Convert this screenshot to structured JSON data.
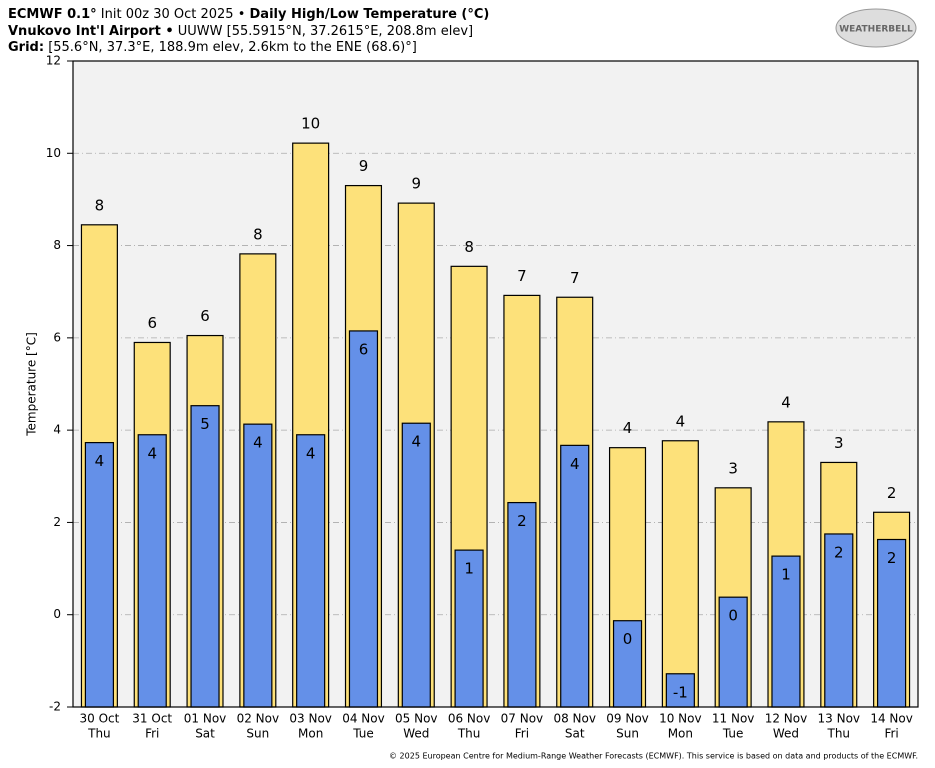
{
  "chart_data": {
    "type": "bar",
    "title": [
      "ECMWF 0.1°",
      "Init 00z 30 Oct 2025 •",
      "Daily High/Low Temperature (°C)"
    ],
    "subtitle": [
      "Vnukovo Int'l Airport •",
      "UUWW [55.5915°N, 37.2615°E, 208.8m elev]"
    ],
    "grid_info": [
      "Grid:",
      "[55.6°N, 37.3°E, 188.9m elev, 2.6km to the ENE (68.6)°]"
    ],
    "logo": "WEATHERBELL",
    "credit": "© 2025 European Centre for Medium-Range Weather Forecasts (ECMWF). This service is based on data and products of the ECMWF.",
    "ylabel": "Temperature [°C]",
    "categories": [
      "30 Oct",
      "31 Oct",
      "01 Nov",
      "02 Nov",
      "03 Nov",
      "04 Nov",
      "05 Nov",
      "06 Nov",
      "07 Nov",
      "08 Nov",
      "09 Nov",
      "10 Nov",
      "11 Nov",
      "12 Nov",
      "13 Nov",
      "14 Nov"
    ],
    "weekdays": [
      "Thu",
      "Fri",
      "Sat",
      "Sun",
      "Mon",
      "Tue",
      "Wed",
      "Thu",
      "Fri",
      "Sat",
      "Sun",
      "Mon",
      "Tue",
      "Wed",
      "Thu",
      "Fri"
    ],
    "series": [
      {
        "color": "#fde17a",
        "values": [
          8.45,
          5.9,
          6.05,
          7.82,
          10.22,
          9.3,
          8.92,
          7.55,
          6.92,
          6.88,
          3.62,
          3.77,
          2.75,
          4.18,
          3.3,
          2.22
        ],
        "value_labels": [
          "8",
          "6",
          "6",
          "8",
          "10",
          "9",
          "9",
          "8",
          "7",
          "7",
          "4",
          "4",
          "3",
          "4",
          "3",
          "2"
        ]
      },
      {
        "color": "#6490e8",
        "values": [
          3.73,
          3.9,
          4.53,
          4.13,
          3.9,
          6.15,
          4.15,
          1.4,
          2.43,
          3.67,
          -0.13,
          -1.28,
          0.38,
          1.27,
          1.75,
          1.63
        ],
        "value_labels": [
          "4",
          "4",
          "5",
          "4",
          "4",
          "6",
          "4",
          "1",
          "2",
          "4",
          "0",
          "-1",
          "0",
          "1",
          "2",
          "2"
        ]
      }
    ],
    "ylim": [
      -2,
      12
    ],
    "yticks": [
      -2,
      0,
      2,
      4,
      6,
      8,
      10,
      12
    ],
    "grid": true
  }
}
